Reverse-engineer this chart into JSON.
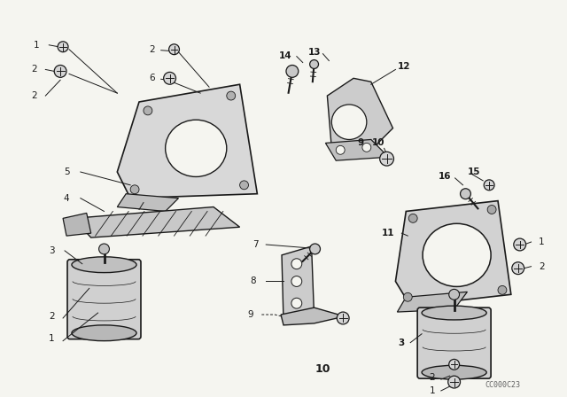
{
  "background_color": "#f5f5f0",
  "line_color": "#1a1a1a",
  "watermark": "CC000C23",
  "fig_width": 6.4,
  "fig_height": 4.48,
  "dpi": 100
}
